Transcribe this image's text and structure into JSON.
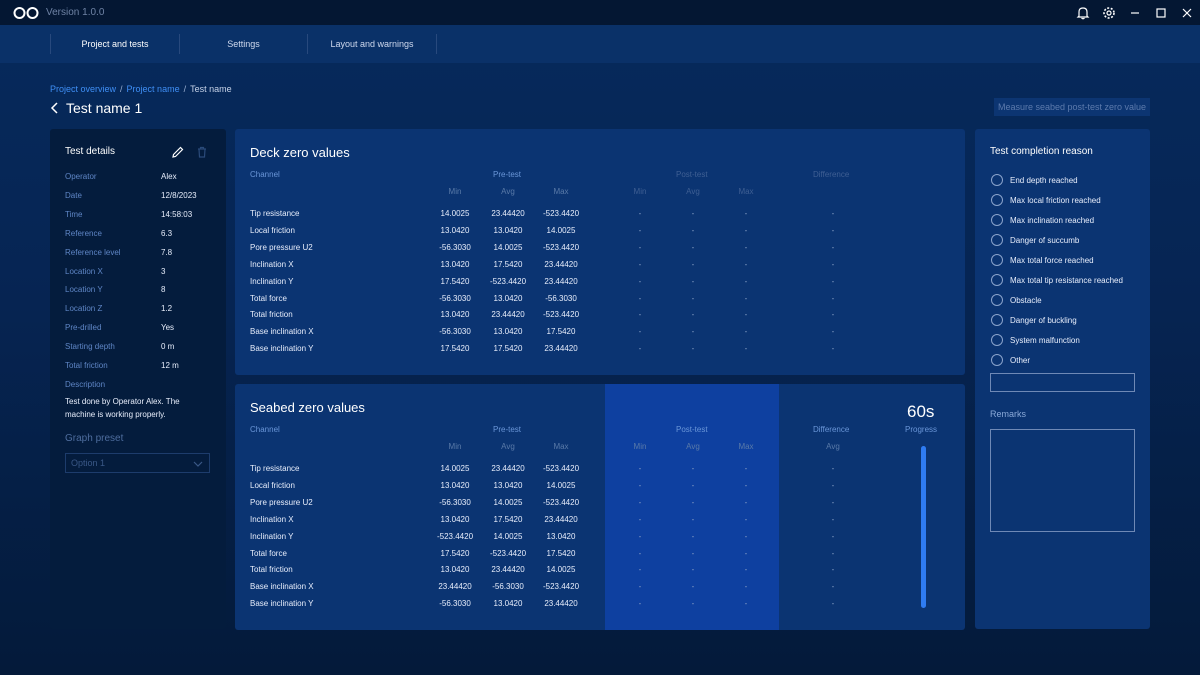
{
  "app": {
    "version": "Version 1.0.0"
  },
  "nav": {
    "tabs": [
      "Project and tests",
      "Settings",
      "Layout and warnings"
    ]
  },
  "breadcrumb": {
    "items": [
      "Project overview",
      "Project name",
      "Test name"
    ],
    "separator": "/"
  },
  "page": {
    "title": "Test name 1",
    "measure_button": "Measure seabed post-test zero value"
  },
  "details": {
    "heading": "Test details",
    "fields": [
      {
        "label": "Operator",
        "value": "Alex"
      },
      {
        "label": "Date",
        "value": "12/8/2023"
      },
      {
        "label": "Time",
        "value": "14:58:03"
      },
      {
        "label": "Reference",
        "value": "6.3"
      },
      {
        "label": "Reference level",
        "value": "7.8"
      },
      {
        "label": "Location X",
        "value": "3"
      },
      {
        "label": "Location Y",
        "value": "8"
      },
      {
        "label": "Location Z",
        "value": "1.2"
      },
      {
        "label": "Pre-drilled",
        "value": "Yes"
      },
      {
        "label": "Starting depth",
        "value": "0 m"
      },
      {
        "label": "Total friction",
        "value": "12 m"
      },
      {
        "label": "Description",
        "value": ""
      }
    ],
    "description": "Test done by Operator Alex. The machine is working properly.",
    "graph_preset_label": "Graph preset",
    "graph_preset_value": "Option 1"
  },
  "headers": {
    "channel": "Channel",
    "pre": "Pre-test",
    "post": "Post-test",
    "diff": "Difference",
    "min": "Min",
    "avg": "Avg",
    "max": "Max"
  },
  "deck": {
    "title": "Deck zero values",
    "rows": [
      {
        "name": "Tip resistance",
        "min": "14.0025",
        "avg": "23.44420",
        "max": "-523.4420",
        "pmin": "-",
        "pavg": "-",
        "pmax": "-",
        "diff": "-"
      },
      {
        "name": "Local friction",
        "min": "13.0420",
        "avg": "13.0420",
        "max": "14.0025",
        "pmin": "-",
        "pavg": "-",
        "pmax": "-",
        "diff": "-"
      },
      {
        "name": "Pore pressure U2",
        "min": "-56.3030",
        "avg": "14.0025",
        "max": "-523.4420",
        "pmin": "-",
        "pavg": "-",
        "pmax": "-",
        "diff": "-"
      },
      {
        "name": "Inclination X",
        "min": "13.0420",
        "avg": "17.5420",
        "max": "23.44420",
        "pmin": "-",
        "pavg": "-",
        "pmax": "-",
        "diff": "-"
      },
      {
        "name": "Inclination Y",
        "min": "17.5420",
        "avg": "-523.4420",
        "max": "23.44420",
        "pmin": "-",
        "pavg": "-",
        "pmax": "-",
        "diff": "-"
      },
      {
        "name": "Total force",
        "min": "-56.3030",
        "avg": "13.0420",
        "max": "-56.3030",
        "pmin": "-",
        "pavg": "-",
        "pmax": "-",
        "diff": "-"
      },
      {
        "name": "Total friction",
        "min": "13.0420",
        "avg": "23.44420",
        "max": "-523.4420",
        "pmin": "-",
        "pavg": "-",
        "pmax": "-",
        "diff": "-"
      },
      {
        "name": "Base inclination X",
        "min": "-56.3030",
        "avg": "13.0420",
        "max": "17.5420",
        "pmin": "-",
        "pavg": "-",
        "pmax": "-",
        "diff": "-"
      },
      {
        "name": "Base inclination Y",
        "min": "17.5420",
        "avg": "17.5420",
        "max": "23.44420",
        "pmin": "-",
        "pavg": "-",
        "pmax": "-",
        "diff": "-"
      }
    ]
  },
  "seabed": {
    "title": "Seabed zero values",
    "progress_value": "60s",
    "progress_label": "Progress",
    "progress_fraction": 1.0,
    "rows": [
      {
        "name": "Tip resistance",
        "min": "14.0025",
        "avg": "23.44420",
        "max": "-523.4420",
        "pmin": "-",
        "pavg": "-",
        "pmax": "-",
        "diff": "-"
      },
      {
        "name": "Local friction",
        "min": "13.0420",
        "avg": "13.0420",
        "max": "14.0025",
        "pmin": "-",
        "pavg": "-",
        "pmax": "-",
        "diff": "-"
      },
      {
        "name": "Pore pressure U2",
        "min": "-56.3030",
        "avg": "14.0025",
        "max": "-523.4420",
        "pmin": "-",
        "pavg": "-",
        "pmax": "-",
        "diff": "-"
      },
      {
        "name": "Inclination X",
        "min": "13.0420",
        "avg": "17.5420",
        "max": "23.44420",
        "pmin": "-",
        "pavg": "-",
        "pmax": "-",
        "diff": "-"
      },
      {
        "name": "Inclination Y",
        "min": "-523.4420",
        "avg": "14.0025",
        "max": "13.0420",
        "pmin": "-",
        "pavg": "-",
        "pmax": "-",
        "diff": "-"
      },
      {
        "name": "Total force",
        "min": "17.5420",
        "avg": "-523.4420",
        "max": "17.5420",
        "pmin": "-",
        "pavg": "-",
        "pmax": "-",
        "diff": "-"
      },
      {
        "name": "Total friction",
        "min": "13.0420",
        "avg": "23.44420",
        "max": "14.0025",
        "pmin": "-",
        "pavg": "-",
        "pmax": "-",
        "diff": "-"
      },
      {
        "name": "Base inclination X",
        "min": "23.44420",
        "avg": "-56.3030",
        "max": "-523.4420",
        "pmin": "-",
        "pavg": "-",
        "pmax": "-",
        "diff": "-"
      },
      {
        "name": "Base inclination Y",
        "min": "-56.3030",
        "avg": "13.0420",
        "max": "23.44420",
        "pmin": "-",
        "pavg": "-",
        "pmax": "-",
        "diff": "-"
      }
    ]
  },
  "completion": {
    "heading": "Test completion reason",
    "reasons": [
      "End depth reached",
      "Max local friction reached",
      "Max inclination reached",
      "Danger of succumb",
      "Max total force reached",
      "Max total tip resistance reached",
      "Obstacle",
      "Danger of buckling",
      "System malfunction",
      "Other"
    ],
    "remarks_label": "Remarks"
  },
  "icons": {
    "titlebar": [
      "bell-icon",
      "gear-icon"
    ],
    "window": [
      "minimize-icon",
      "maximize-icon",
      "close-icon"
    ],
    "details": [
      "edit-icon",
      "trash-icon"
    ]
  },
  "colors": {
    "accent": "#3f8ef5",
    "progress": "#2f7cf2",
    "panel": "#0b3472"
  }
}
